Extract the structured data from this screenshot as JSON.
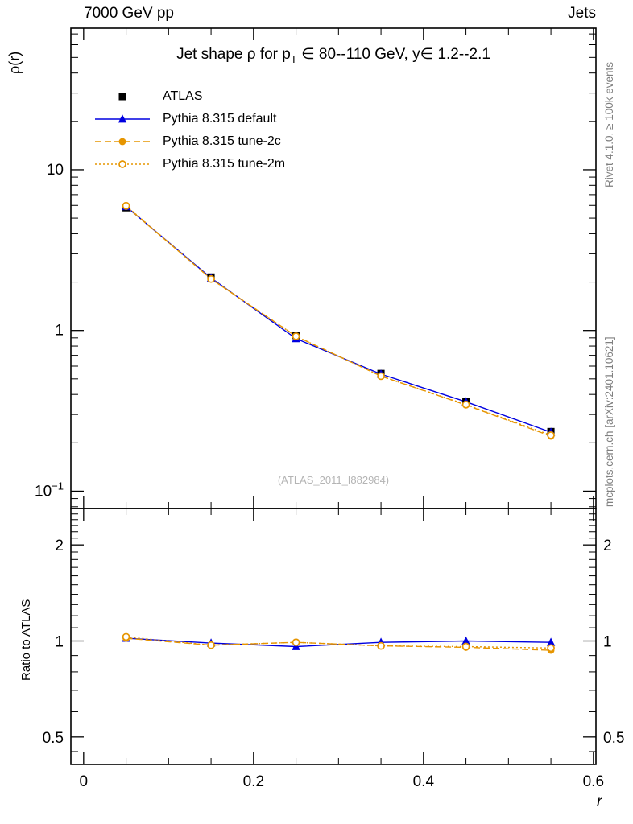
{
  "header": {
    "left": "7000 GeV pp",
    "right": "Jets"
  },
  "right_margin": {
    "top_text": "Rivet 4.1.0, ≥ 100k events",
    "bottom_text": "mcplots.cern.ch [arXiv:2401.10621]"
  },
  "watermark": "(ATLAS_2011_I882984)",
  "chart_data": {
    "type": "line",
    "title_full": "Jet shape ρ for p_T ∈ 80--110 GeV, y∈ 1.2--2.1",
    "title": {
      "pre": "Jet shape ρ for p",
      "sub": "T",
      "post": " ∈ 80--110 GeV, y∈ 1.2--2.1"
    },
    "xlabel": "r",
    "ylabel": "ρ(r)",
    "ratio_ylabel": "Ratio to ATLAS",
    "legend_position": "top-left",
    "x_scale": "linear",
    "y_scale": "log",
    "ratio_y_scale": "log",
    "xlim": [
      -0.015,
      0.603
    ],
    "ylim_main": [
      0.078,
      76
    ],
    "ylim_ratio": [
      0.41,
      2.6
    ],
    "x_ticks": [
      {
        "v": 0,
        "label": "0"
      },
      {
        "v": 0.2,
        "label": "0.2"
      },
      {
        "v": 0.4,
        "label": "0.4"
      },
      {
        "v": 0.6,
        "label": "0.6"
      }
    ],
    "y_ticks_main": [
      {
        "v": 10,
        "label": "10"
      },
      {
        "v": 1,
        "label": "1"
      },
      {
        "v": 0.1,
        "label": "10",
        "sup": "−1"
      }
    ],
    "y_ticks_ratio": [
      {
        "v": 2,
        "label": "2"
      },
      {
        "v": 1,
        "label": "1"
      },
      {
        "v": 0.5,
        "label": "0.5"
      }
    ],
    "x": [
      0.05,
      0.15,
      0.25,
      0.35,
      0.45,
      0.55
    ],
    "series": [
      {
        "name": "ATLAS",
        "color": "#000000",
        "marker": "square",
        "fill": "filled",
        "line": "none",
        "values": [
          5.8,
          2.15,
          0.93,
          0.54,
          0.36,
          0.235
        ],
        "yerr": [
          0.2,
          0.07,
          0.03,
          0.018,
          0.012,
          0.008
        ]
      },
      {
        "name": "Pythia 8.315 default",
        "color": "#0000e0",
        "marker": "triangle",
        "fill": "filled",
        "line": "solid",
        "values": [
          5.9,
          2.12,
          0.89,
          0.535,
          0.36,
          0.233
        ],
        "ratio": [
          1.02,
          0.985,
          0.96,
          0.99,
          1.0,
          0.99
        ]
      },
      {
        "name": "Pythia 8.315 tune-2c",
        "color": "#e69500",
        "marker": "circle",
        "fill": "filled",
        "line": "dashed",
        "values": [
          5.92,
          2.09,
          0.92,
          0.52,
          0.344,
          0.22
        ],
        "ratio": [
          1.02,
          0.97,
          0.99,
          0.965,
          0.955,
          0.935
        ]
      },
      {
        "name": "Pythia 8.315 tune-2m",
        "color": "#e69500",
        "marker": "circle",
        "fill": "open",
        "line": "dotted",
        "values": [
          5.97,
          2.09,
          0.92,
          0.52,
          0.346,
          0.223
        ],
        "ratio": [
          1.03,
          0.97,
          0.99,
          0.965,
          0.96,
          0.95
        ]
      }
    ]
  }
}
